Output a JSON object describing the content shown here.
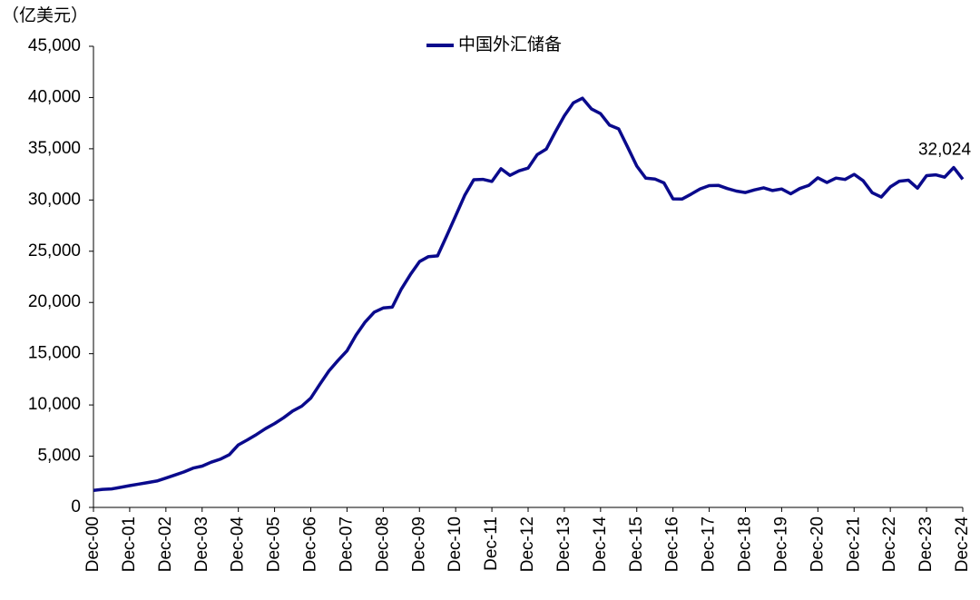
{
  "chart_data": {
    "type": "line",
    "y_label": "（亿美元）",
    "categories": [
      "Dec-00",
      null,
      null,
      null,
      "Dec-01",
      null,
      null,
      null,
      "Dec-02",
      null,
      null,
      null,
      "Dec-03",
      null,
      null,
      null,
      "Dec-04",
      null,
      null,
      null,
      "Dec-05",
      null,
      null,
      null,
      "Dec-06",
      null,
      null,
      null,
      "Dec-07",
      null,
      null,
      null,
      "Dec-08",
      null,
      null,
      null,
      "Dec-09",
      null,
      null,
      null,
      "Dec-10",
      null,
      null,
      null,
      "Dec-11",
      null,
      null,
      null,
      "Dec-12",
      null,
      null,
      null,
      "Dec-13",
      null,
      null,
      null,
      "Dec-14",
      null,
      null,
      null,
      "Dec-15",
      null,
      null,
      null,
      "Dec-16",
      null,
      null,
      null,
      "Dec-17",
      null,
      null,
      null,
      "Dec-18",
      null,
      null,
      null,
      "Dec-19",
      null,
      null,
      null,
      "Dec-20",
      null,
      null,
      null,
      "Dec-21",
      null,
      null,
      null,
      "Dec-22",
      null,
      null,
      null,
      "Dec-23",
      null,
      null,
      null,
      "Dec-24"
    ],
    "series": [
      {
        "name": "中国外汇储备",
        "color": "#0a0a8c",
        "values": [
          1656,
          1759,
          1805,
          1958,
          2122,
          2280,
          2427,
          2580,
          2864,
          3160,
          3465,
          3840,
          4033,
          4410,
          4706,
          5145,
          6099,
          6591,
          7110,
          7690,
          8189,
          8751,
          9411,
          9879,
          10663,
          12020,
          13326,
          14336,
          15282,
          16822,
          18088,
          19056,
          19460,
          19537,
          21316,
          22726,
          23992,
          24471,
          24543,
          26483,
          28473,
          30447,
          31975,
          32017,
          31811,
          33050,
          32400,
          32850,
          33116,
          34426,
          34967,
          36627,
          38213,
          39480,
          39932,
          38877,
          38430,
          37300,
          36938,
          35141,
          33304,
          32126,
          32052,
          31664,
          30105,
          30091,
          30568,
          31085,
          31399,
          31428,
          31121,
          30870,
          30727,
          30988,
          31192,
          30924,
          31079,
          30606,
          31123,
          31426,
          32165,
          31700,
          32140,
          32006,
          32502,
          31880,
          30713,
          30290,
          31277,
          31839,
          31930,
          31151,
          32380,
          32457,
          32224,
          33164,
          32024
        ],
        "value_labels": [
          null,
          null,
          null,
          null,
          null,
          null,
          null,
          null,
          null,
          null,
          null,
          null,
          null,
          null,
          null,
          null,
          null,
          null,
          null,
          null,
          null,
          null,
          null,
          null,
          null,
          null,
          null,
          null,
          null,
          null,
          null,
          null,
          null,
          null,
          null,
          null,
          null,
          null,
          null,
          null,
          null,
          null,
          null,
          null,
          null,
          null,
          null,
          null,
          null,
          null,
          null,
          null,
          null,
          null,
          null,
          null,
          null,
          null,
          null,
          null,
          null,
          null,
          null,
          null,
          null,
          null,
          null,
          null,
          null,
          null,
          null,
          null,
          null,
          null,
          null,
          null,
          null,
          null,
          null,
          null,
          null,
          null,
          null,
          null,
          null,
          null,
          null,
          null,
          null,
          null,
          null,
          null,
          null,
          null,
          null,
          null,
          "32,024"
        ]
      }
    ],
    "ylim": [
      0,
      45000
    ],
    "yticks": [
      0,
      {
        "value": 5000,
        "label": "5,000"
      },
      {
        "value": 10000,
        "label": "10,000"
      },
      {
        "value": 15000,
        "label": "15,000"
      },
      {
        "value": 20000,
        "label": "20,000"
      },
      {
        "value": 25000,
        "label": "25,000"
      },
      {
        "value": 30000,
        "label": "30,000"
      },
      {
        "value": 35000,
        "label": "35,000"
      },
      {
        "value": 40000,
        "label": "40,000"
      },
      {
        "value": 45000,
        "label": "45,000"
      }
    ],
    "grid": false,
    "legend": "top"
  }
}
